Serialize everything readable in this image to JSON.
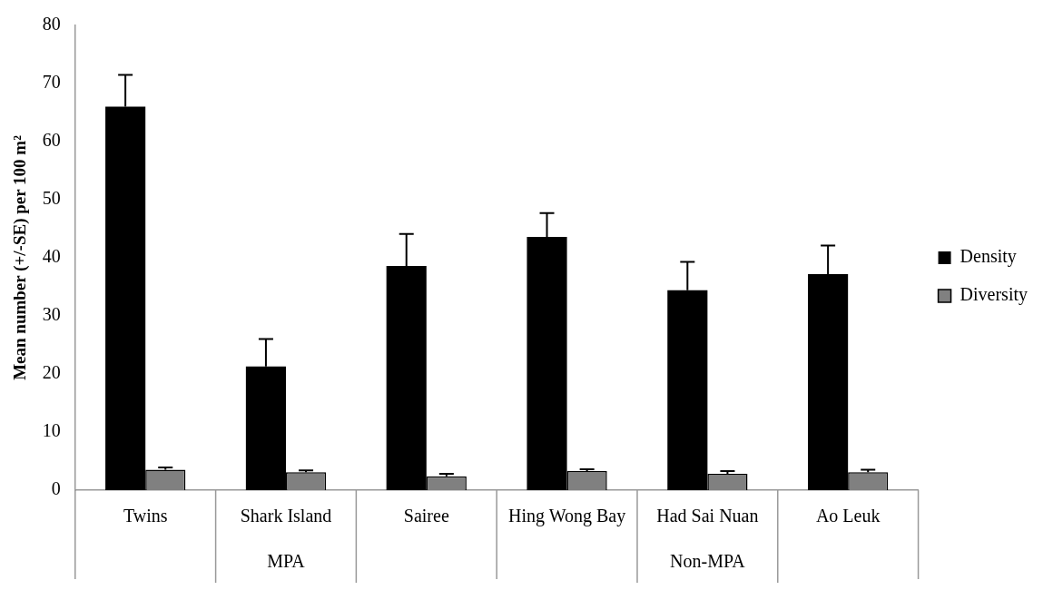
{
  "chart_data": {
    "type": "bar",
    "ylabel": "Mean number (+/-SE) per 100 m²",
    "categories": [
      "Twins",
      "Shark Island",
      "Sairee",
      "Hing Wong Bay",
      "Had Sai Nuan",
      "Ao Leuk"
    ],
    "series": [
      {
        "name": "Density",
        "color": "#000000",
        "values": [
          66,
          21.3,
          38.6,
          43.6,
          34.4,
          37.2
        ],
        "errors": [
          [
            66,
            71.5
          ],
          [
            21.3,
            26
          ],
          [
            38.6,
            44.1
          ],
          [
            43.6,
            47.7
          ],
          [
            34.4,
            39.3
          ],
          [
            37.2,
            42.1
          ]
        ]
      },
      {
        "name": "Diversity",
        "color": "#808080",
        "values": [
          3.5,
          3.1,
          2.4,
          3.3,
          2.8,
          3.1
        ],
        "errors": [
          [
            3.5,
            3.9
          ],
          [
            3.1,
            3.4
          ],
          [
            2.4,
            2.8
          ],
          [
            3.3,
            3.6
          ],
          [
            2.8,
            3.3
          ],
          [
            3.1,
            3.5
          ]
        ]
      }
    ],
    "annotations": [
      "MPA",
      "Non-MPA"
    ],
    "ylim": [
      0,
      80
    ],
    "yticks": [
      0,
      10,
      20,
      30,
      40,
      50,
      60,
      70,
      80
    ],
    "grid": false,
    "legend": "right"
  }
}
